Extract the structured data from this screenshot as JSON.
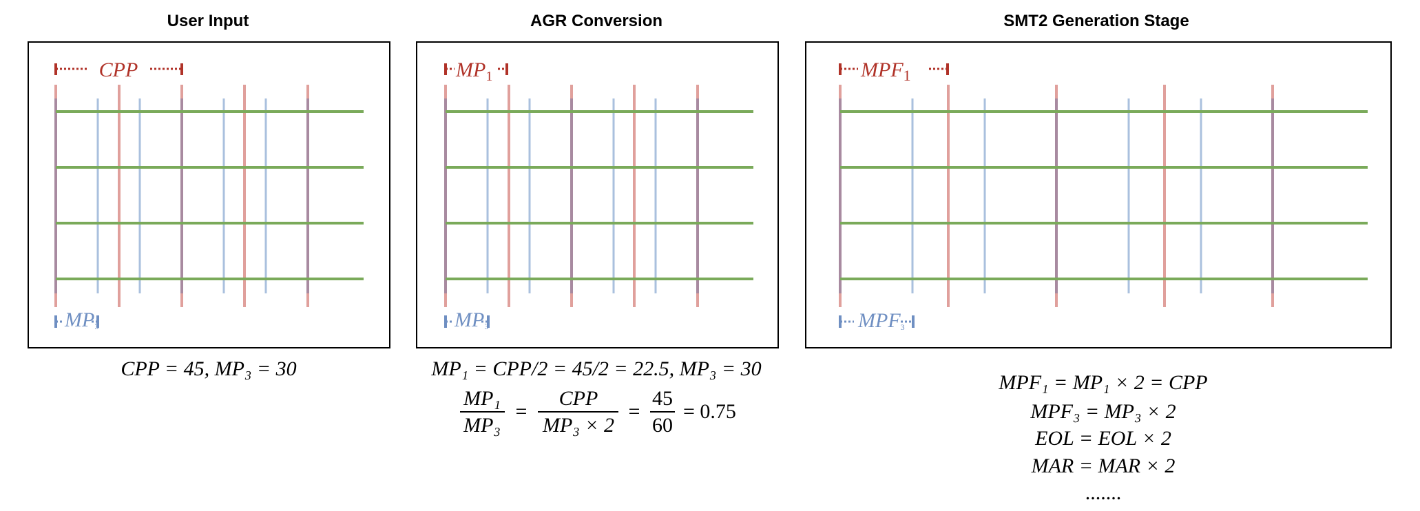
{
  "panels": [
    {
      "title": "User Input",
      "top_label": {
        "base": "CPP",
        "sub": ""
      },
      "bottom_label": {
        "base": "MP",
        "sub": "3"
      }
    },
    {
      "title": "AGR Conversion",
      "top_label": {
        "base": "MP",
        "sub": "1"
      },
      "bottom_label": {
        "base": "MP",
        "sub": "3"
      }
    },
    {
      "title": "SMT2 Generation Stage",
      "top_label": {
        "base": "MPF",
        "sub": "1"
      },
      "bottom_label": {
        "base": "MPF",
        "sub": "3"
      }
    }
  ],
  "equations": {
    "user_input": "CPP = 45, MP₃ = 30",
    "agr_line1": "MP₁ = CPP/2 = 45/2 = 22.5, MP₃ = 30",
    "agr_frac1_num": "MP₁",
    "agr_frac1_den": "MP₃",
    "agr_frac2_num": "CPP",
    "agr_frac2_den": "MP₃ × 2",
    "agr_frac3_num": "45",
    "agr_frac3_den": "60",
    "agr_result": "= 0.75",
    "smt2_lines": [
      "MPF₁ = MP₁ × 2 = CPP",
      "MPF₃ = MP₃ × 2",
      "EOL = EOL × 2",
      "MAR = MAR × 2"
    ],
    "smt2_ellipsis": "......."
  },
  "colors": {
    "green_track": "#7aaa5a",
    "red_line": "#e0a09c",
    "blue_line": "#aac0de",
    "red_label": "#b03228",
    "blue_label": "#6f8fc2",
    "overlap": "#a88aa0"
  }
}
